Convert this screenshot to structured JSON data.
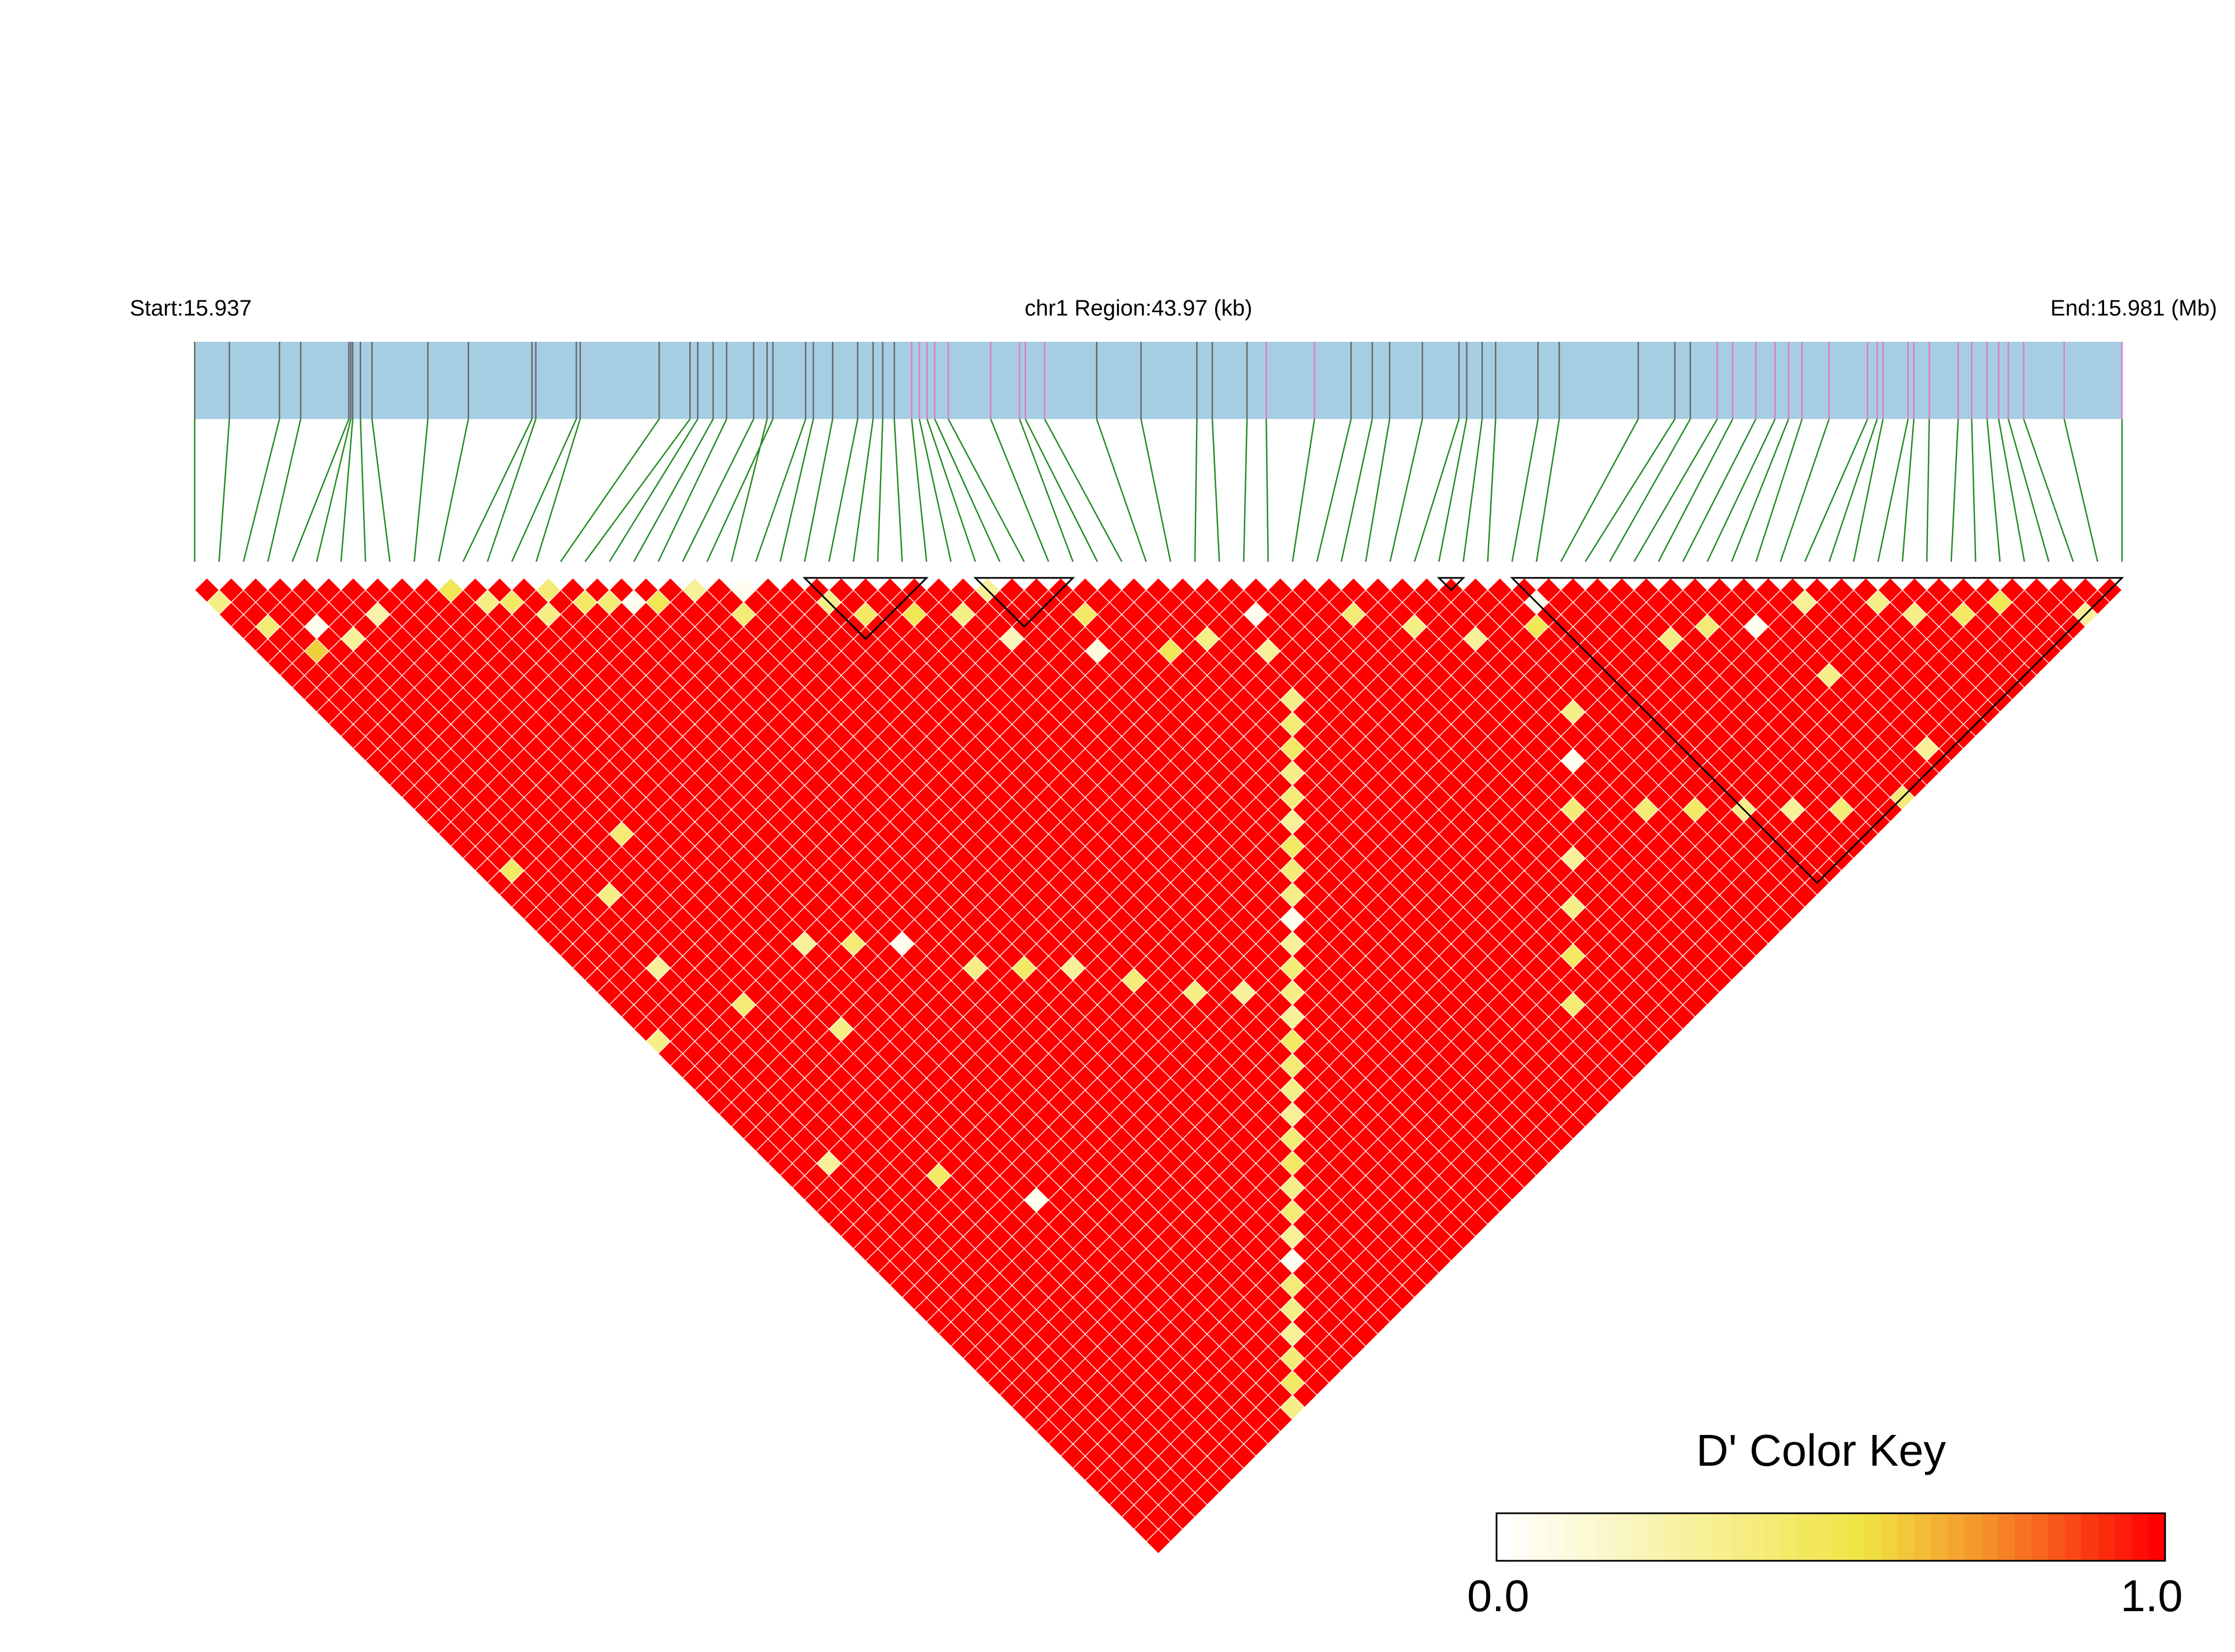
{
  "header": {
    "start_label": "Start:15.937",
    "region_label": "chr1 Region:43.97 (kb)",
    "end_label": "End:15.981 (Mb)"
  },
  "color_key": {
    "title": "D' Color Key",
    "min_label": "0.0",
    "max_label": "1.0",
    "colors": [
      "#ffffff",
      "#f0e442",
      "#ff0000"
    ]
  },
  "colors": {
    "track_fill": "#a6cee3",
    "snp_line_default": "#666666",
    "snp_line_highlight": "#e377c2",
    "connector": "#228b22",
    "ld_high": "#ff0000",
    "block_outline": "#000000"
  },
  "chart_data": {
    "type": "heatmap",
    "title": "",
    "value_name": "D'",
    "value_range": [
      0,
      1
    ],
    "region_start_mb": 15.937,
    "region_end_mb": 15.981,
    "region_length_kb": 43.97,
    "snp_count": 80,
    "snp_relative_positions": [
      0.0,
      0.018,
      0.044,
      0.055,
      0.08,
      0.081,
      0.082,
      0.086,
      0.092,
      0.121,
      0.142,
      0.175,
      0.177,
      0.198,
      0.2,
      0.241,
      0.257,
      0.261,
      0.269,
      0.276,
      0.29,
      0.3,
      0.297,
      0.317,
      0.321,
      0.331,
      0.344,
      0.352,
      0.357,
      0.363,
      0.372,
      0.376,
      0.38,
      0.384,
      0.391,
      0.413,
      0.428,
      0.431,
      0.441,
      0.468,
      0.491,
      0.52,
      0.528,
      0.546,
      0.556,
      0.581,
      0.6,
      0.611,
      0.62,
      0.637,
      0.656,
      0.66,
      0.668,
      0.675,
      0.697,
      0.708,
      0.749,
      0.768,
      0.776,
      0.79,
      0.798,
      0.81,
      0.82,
      0.827,
      0.834,
      0.848,
      0.868,
      0.873,
      0.876,
      0.889,
      0.892,
      0.9,
      0.915,
      0.922,
      0.93,
      0.936,
      0.941,
      0.949,
      0.97,
      1.0
    ],
    "highlighted_snp_indices": [
      30,
      31,
      32,
      33,
      34,
      35,
      36,
      37,
      38,
      44,
      45,
      59,
      60,
      61,
      62,
      63,
      64,
      65,
      66,
      67,
      68,
      69,
      70,
      71,
      72,
      73,
      74,
      75,
      76,
      77,
      78,
      79
    ],
    "default_dprime": 1.0,
    "low_dprime_pairs": [
      [
        0,
        2,
        0.35
      ],
      [
        1,
        5,
        0.4
      ],
      [
        3,
        7,
        0.05
      ],
      [
        4,
        9,
        0.3
      ],
      [
        6,
        9,
        0.25
      ],
      [
        2,
        8,
        0.6
      ],
      [
        10,
        11,
        0.5
      ],
      [
        11,
        13,
        0.35
      ],
      [
        12,
        14,
        0.45
      ],
      [
        13,
        16,
        0.35
      ],
      [
        14,
        15,
        0.4
      ],
      [
        15,
        17,
        0.45
      ],
      [
        16,
        18,
        0.4
      ],
      [
        17,
        19,
        0.05
      ],
      [
        18,
        20,
        0.5
      ],
      [
        20,
        21,
        0.3
      ],
      [
        21,
        24,
        0.4
      ],
      [
        22,
        23,
        0.05
      ],
      [
        25,
        27,
        0.35
      ],
      [
        26,
        29,
        0.45
      ],
      [
        28,
        31,
        0.5
      ],
      [
        30,
        33,
        0.35
      ],
      [
        31,
        36,
        0.2
      ],
      [
        32,
        33,
        0.3
      ],
      [
        34,
        40,
        0.1
      ],
      [
        35,
        38,
        0.45
      ],
      [
        37,
        43,
        0.5
      ],
      [
        39,
        44,
        0.35
      ],
      [
        41,
        47,
        0.3
      ],
      [
        42,
        45,
        0.05
      ],
      [
        46,
        49,
        0.4
      ],
      [
        48,
        52,
        0.35
      ],
      [
        50,
        55,
        0.3
      ],
      [
        53,
        57,
        0.5
      ],
      [
        54,
        56,
        0.05
      ],
      [
        58,
        63,
        0.35
      ],
      [
        60,
        64,
        0.4
      ],
      [
        62,
        66,
        0.05
      ],
      [
        65,
        67,
        0.3
      ],
      [
        68,
        70,
        0.35
      ],
      [
        69,
        72,
        0.35
      ],
      [
        71,
        74,
        0.45
      ],
      [
        73,
        75,
        0.5
      ],
      [
        76,
        79,
        0.3
      ],
      [
        40,
        50,
        0.35
      ],
      [
        39,
        51,
        0.4
      ],
      [
        38,
        52,
        0.45
      ],
      [
        37,
        53,
        0.35
      ],
      [
        36,
        54,
        0.4
      ],
      [
        35,
        55,
        0.3
      ],
      [
        34,
        56,
        0.45
      ],
      [
        33,
        57,
        0.4
      ],
      [
        32,
        58,
        0.35
      ],
      [
        31,
        59,
        0.05
      ],
      [
        30,
        60,
        0.3
      ],
      [
        29,
        61,
        0.4
      ],
      [
        28,
        62,
        0.35
      ],
      [
        27,
        63,
        0.3
      ],
      [
        26,
        64,
        0.45
      ],
      [
        25,
        65,
        0.4
      ],
      [
        24,
        66,
        0.35
      ],
      [
        23,
        67,
        0.3
      ],
      [
        22,
        68,
        0.4
      ],
      [
        21,
        69,
        0.45
      ],
      [
        20,
        70,
        0.35
      ],
      [
        19,
        71,
        0.4
      ],
      [
        18,
        72,
        0.3
      ],
      [
        17,
        73,
        0.05
      ],
      [
        16,
        74,
        0.4
      ],
      [
        15,
        75,
        0.35
      ],
      [
        14,
        76,
        0.3
      ],
      [
        13,
        77,
        0.4
      ],
      [
        12,
        78,
        0.45
      ],
      [
        11,
        79,
        0.35
      ],
      [
        10,
        40,
        0.3
      ],
      [
        12,
        42,
        0.4
      ],
      [
        14,
        44,
        0.05
      ],
      [
        16,
        48,
        0.35
      ],
      [
        18,
        50,
        0.45
      ],
      [
        20,
        52,
        0.3
      ],
      [
        22,
        55,
        0.4
      ],
      [
        24,
        58,
        0.35
      ],
      [
        26,
        60,
        0.3
      ],
      [
        5,
        40,
        0.4
      ],
      [
        8,
        45,
        0.35
      ],
      [
        2,
        50,
        0.3
      ],
      [
        6,
        55,
        0.45
      ],
      [
        9,
        60,
        0.05
      ],
      [
        4,
        30,
        0.35
      ],
      [
        7,
        28,
        0.4
      ],
      [
        3,
        35,
        0.3
      ],
      [
        1,
        25,
        0.45
      ],
      [
        0,
        38,
        0.35
      ],
      [
        50,
        69,
        0.4
      ],
      [
        52,
        71,
        0.45
      ],
      [
        54,
        73,
        0.35
      ],
      [
        56,
        75,
        0.3
      ],
      [
        58,
        77,
        0.4
      ],
      [
        51,
        62,
        0.35
      ],
      [
        49,
        64,
        0.05
      ],
      [
        47,
        66,
        0.4
      ],
      [
        45,
        68,
        0.3
      ],
      [
        43,
        70,
        0.35
      ],
      [
        41,
        72,
        0.45
      ],
      [
        39,
        74,
        0.4
      ],
      [
        63,
        71,
        0.35
      ],
      [
        64,
        78,
        0.3
      ],
      [
        61,
        79,
        0.4
      ]
    ],
    "blocks": [
      [
        25,
        30
      ],
      [
        32,
        36
      ],
      [
        51,
        52
      ],
      [
        54,
        79
      ]
    ]
  }
}
